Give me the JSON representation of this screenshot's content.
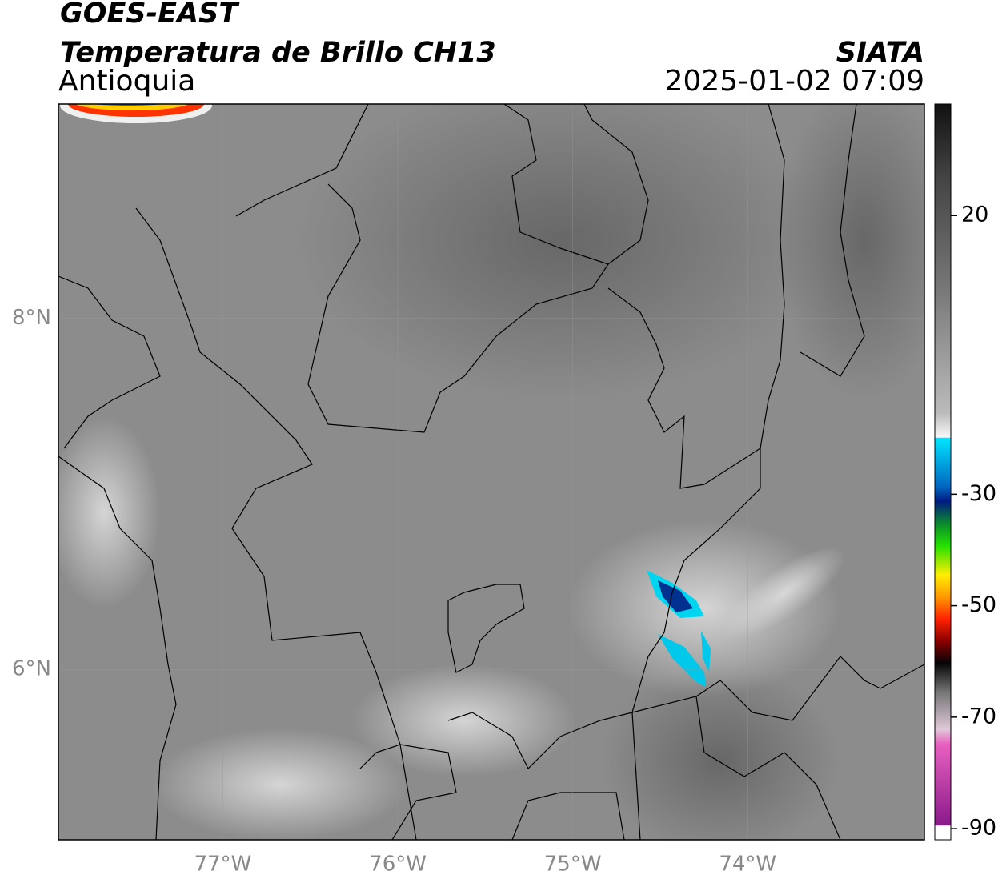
{
  "chart_data": {
    "type": "map",
    "title": "GOES-EAST",
    "subtitle": "Temperatura de Brillo CH13",
    "region": "Antioquia",
    "source": "SIATA",
    "timestamp": "2025-01-02 07:09",
    "xlim": [
      -77.94,
      -72.99
    ],
    "ylim": [
      5.03,
      9.22
    ],
    "xticks": [
      {
        "value": -77,
        "label": "77°W"
      },
      {
        "value": -76,
        "label": "76°W"
      },
      {
        "value": -75,
        "label": "75°W"
      },
      {
        "value": -74,
        "label": "74°W"
      }
    ],
    "yticks": [
      {
        "value": 8,
        "label": "8°N"
      },
      {
        "value": 6,
        "label": "6°N"
      }
    ],
    "grid": true,
    "colorbar": {
      "lim": [
        -92,
        40
      ],
      "ticks": [
        20,
        -30,
        -50,
        -70,
        -90
      ]
    }
  }
}
